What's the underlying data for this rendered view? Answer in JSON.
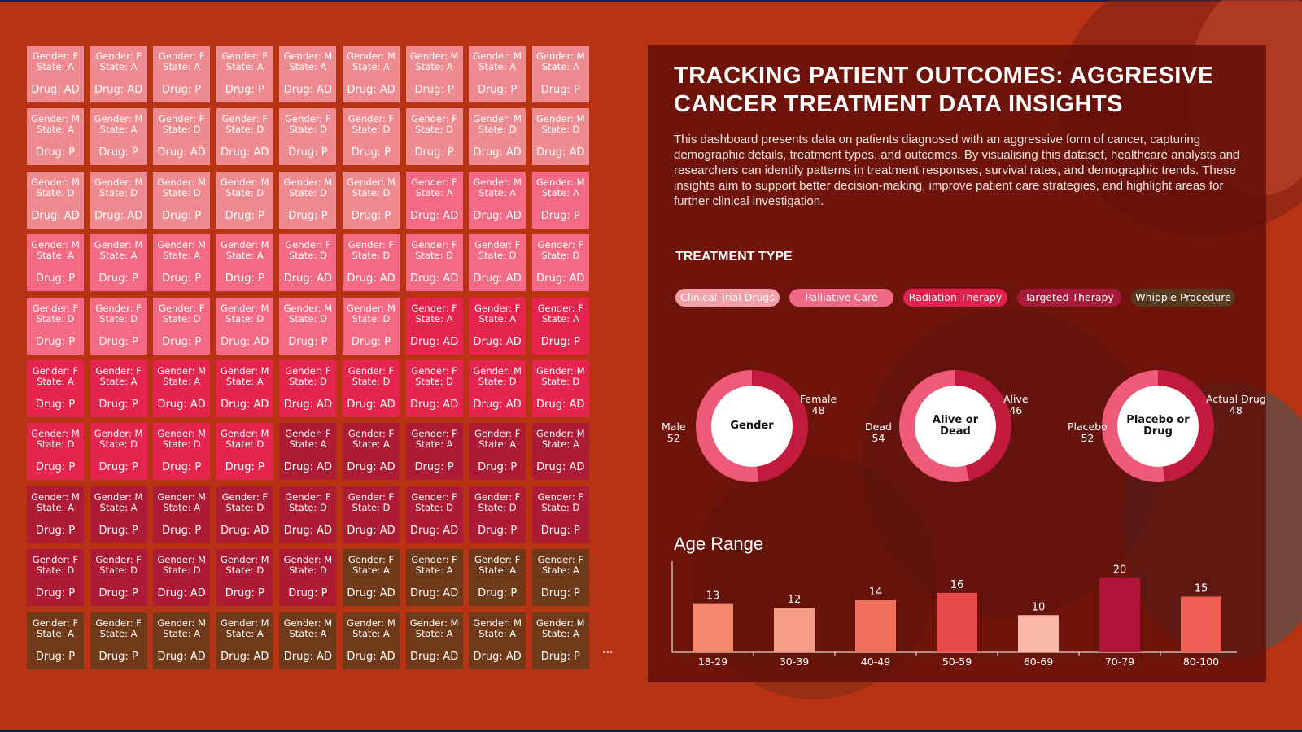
{
  "title": "TRACKING PATIENT OUTCOMES: AGGRESIVE CANCER TREATMENT DATA INSIGHTS",
  "description": "This dashboard presents data on patients diagnosed with an aggressive form of cancer, capturing demographic details, treatment types, and outcomes. By visualising this dataset, healthcare analysts and researchers can identify patterns in treatment responses, survival rates, and demographic trends. These insights aim to support better decision-making, improve patient care strategies, and highlight areas for further clinical investigation.",
  "treatment_type": {
    "heading": "TREATMENT TYPE",
    "items": [
      {
        "label": "Clinical Trial Drugs",
        "color": "#f0a1a8",
        "text_color": "#ffffff"
      },
      {
        "label": "Palliative Care",
        "color": "#ee6a86",
        "text_color": "#ffffff"
      },
      {
        "label": "Radiation Therapy",
        "color": "#e2214f",
        "text_color": "#ffffff"
      },
      {
        "label": "Targeted Therapy",
        "color": "#a81a3a",
        "text_color": "#ffffff"
      },
      {
        "label": "Whipple Procedure",
        "color": "#5a3a1e",
        "text_color": "#ffffff"
      }
    ]
  },
  "donuts": [
    {
      "center": "Gender",
      "left_label": "Male",
      "left_value": "52",
      "right_label": "Female",
      "right_value": "48",
      "fraction_right": 0.48,
      "color_right": "#c21a3d",
      "color_left": "#ee5a78"
    },
    {
      "center": "Alive or Dead",
      "left_label": "Dead",
      "left_value": "54",
      "right_label": "Alive",
      "right_value": "46",
      "fraction_right": 0.46,
      "color_right": "#c21a3d",
      "color_left": "#ee5a78"
    },
    {
      "center": "Placebo or Drug",
      "left_label": "Placebo",
      "left_value": "52",
      "right_label": "Actual Drug",
      "right_value": "48",
      "fraction_right": 0.48,
      "color_right": "#c21a3d",
      "color_left": "#ee5a78"
    }
  ],
  "age_range": {
    "heading": "Age Range"
  },
  "chart_data": {
    "type": "bar",
    "title": "Age Range",
    "categories": [
      "18-29",
      "30-39",
      "40-49",
      "50-59",
      "60-69",
      "70-79",
      "80-100"
    ],
    "values": [
      13,
      12,
      14,
      16,
      10,
      20,
      15
    ],
    "colors": [
      "#f5876e",
      "#f59c87",
      "#f0705c",
      "#e84a4a",
      "#fbb7a8",
      "#b0143a",
      "#ef5e52"
    ],
    "ylim": [
      0,
      21
    ]
  },
  "tiles_colors": {
    "pink_light": "#ee8b91",
    "pink": "#f36a84",
    "red": "#e5254e",
    "crimson": "#ad1b34",
    "brown": "#6e3a19"
  },
  "tiles": [
    [
      {
        "g": "F",
        "s": "A",
        "d": "AD",
        "c": "pink_light"
      },
      {
        "g": "F",
        "s": "A",
        "d": "AD",
        "c": "pink_light"
      },
      {
        "g": "F",
        "s": "A",
        "d": "P",
        "c": "pink_light"
      },
      {
        "g": "F",
        "s": "A",
        "d": "P",
        "c": "pink_light"
      },
      {
        "g": "M",
        "s": "A",
        "d": "AD",
        "c": "pink_light"
      },
      {
        "g": "M",
        "s": "A",
        "d": "AD",
        "c": "pink_light"
      },
      {
        "g": "M",
        "s": "A",
        "d": "P",
        "c": "pink_light"
      },
      {
        "g": "M",
        "s": "A",
        "d": "P",
        "c": "pink_light"
      },
      {
        "g": "M",
        "s": "A",
        "d": "P",
        "c": "pink_light"
      }
    ],
    [
      {
        "g": "M",
        "s": "A",
        "d": "P",
        "c": "pink_light"
      },
      {
        "g": "M",
        "s": "A",
        "d": "P",
        "c": "pink_light"
      },
      {
        "g": "F",
        "s": "D",
        "d": "AD",
        "c": "pink_light"
      },
      {
        "g": "F",
        "s": "D",
        "d": "AD",
        "c": "pink_light"
      },
      {
        "g": "F",
        "s": "D",
        "d": "P",
        "c": "pink_light"
      },
      {
        "g": "F",
        "s": "D",
        "d": "P",
        "c": "pink_light"
      },
      {
        "g": "F",
        "s": "D",
        "d": "P",
        "c": "pink_light"
      },
      {
        "g": "M",
        "s": "D",
        "d": "AD",
        "c": "pink_light"
      },
      {
        "g": "M",
        "s": "D",
        "d": "AD",
        "c": "pink_light"
      }
    ],
    [
      {
        "g": "M",
        "s": "D",
        "d": "AD",
        "c": "pink_light"
      },
      {
        "g": "M",
        "s": "D",
        "d": "AD",
        "c": "pink_light"
      },
      {
        "g": "M",
        "s": "D",
        "d": "P",
        "c": "pink_light"
      },
      {
        "g": "M",
        "s": "D",
        "d": "P",
        "c": "pink_light"
      },
      {
        "g": "M",
        "s": "D",
        "d": "P",
        "c": "pink_light"
      },
      {
        "g": "M",
        "s": "D",
        "d": "P",
        "c": "pink_light"
      },
      {
        "g": "F",
        "s": "A",
        "d": "AD",
        "c": "pink"
      },
      {
        "g": "M",
        "s": "A",
        "d": "AD",
        "c": "pink"
      },
      {
        "g": "M",
        "s": "A",
        "d": "P",
        "c": "pink"
      }
    ],
    [
      {
        "g": "M",
        "s": "A",
        "d": "P",
        "c": "pink"
      },
      {
        "g": "M",
        "s": "A",
        "d": "P",
        "c": "pink"
      },
      {
        "g": "M",
        "s": "A",
        "d": "P",
        "c": "pink"
      },
      {
        "g": "M",
        "s": "A",
        "d": "P",
        "c": "pink"
      },
      {
        "g": "F",
        "s": "D",
        "d": "AD",
        "c": "pink"
      },
      {
        "g": "F",
        "s": "D",
        "d": "AD",
        "c": "pink"
      },
      {
        "g": "F",
        "s": "D",
        "d": "AD",
        "c": "pink"
      },
      {
        "g": "F",
        "s": "D",
        "d": "AD",
        "c": "pink"
      },
      {
        "g": "F",
        "s": "D",
        "d": "AD",
        "c": "pink"
      }
    ],
    [
      {
        "g": "F",
        "s": "D",
        "d": "P",
        "c": "pink"
      },
      {
        "g": "F",
        "s": "D",
        "d": "P",
        "c": "pink"
      },
      {
        "g": "F",
        "s": "D",
        "d": "P",
        "c": "pink"
      },
      {
        "g": "M",
        "s": "D",
        "d": "AD",
        "c": "pink"
      },
      {
        "g": "M",
        "s": "D",
        "d": "P",
        "c": "pink"
      },
      {
        "g": "M",
        "s": "D",
        "d": "P",
        "c": "pink"
      },
      {
        "g": "F",
        "s": "A",
        "d": "AD",
        "c": "red"
      },
      {
        "g": "F",
        "s": "A",
        "d": "AD",
        "c": "red"
      },
      {
        "g": "F",
        "s": "A",
        "d": "P",
        "c": "red"
      }
    ],
    [
      {
        "g": "F",
        "s": "A",
        "d": "P",
        "c": "red"
      },
      {
        "g": "F",
        "s": "A",
        "d": "P",
        "c": "red"
      },
      {
        "g": "M",
        "s": "A",
        "d": "AD",
        "c": "red"
      },
      {
        "g": "M",
        "s": "A",
        "d": "AD",
        "c": "red"
      },
      {
        "g": "F",
        "s": "D",
        "d": "AD",
        "c": "red"
      },
      {
        "g": "F",
        "s": "D",
        "d": "AD",
        "c": "red"
      },
      {
        "g": "F",
        "s": "D",
        "d": "AD",
        "c": "red"
      },
      {
        "g": "M",
        "s": "D",
        "d": "AD",
        "c": "red"
      },
      {
        "g": "M",
        "s": "D",
        "d": "AD",
        "c": "red"
      }
    ],
    [
      {
        "g": "M",
        "s": "D",
        "d": "P",
        "c": "red"
      },
      {
        "g": "M",
        "s": "D",
        "d": "P",
        "c": "red"
      },
      {
        "g": "M",
        "s": "D",
        "d": "P",
        "c": "red"
      },
      {
        "g": "M",
        "s": "D",
        "d": "P",
        "c": "red"
      },
      {
        "g": "F",
        "s": "A",
        "d": "AD",
        "c": "crimson"
      },
      {
        "g": "F",
        "s": "A",
        "d": "AD",
        "c": "crimson"
      },
      {
        "g": "F",
        "s": "A",
        "d": "P",
        "c": "crimson"
      },
      {
        "g": "F",
        "s": "A",
        "d": "P",
        "c": "crimson"
      },
      {
        "g": "M",
        "s": "A",
        "d": "AD",
        "c": "crimson"
      }
    ],
    [
      {
        "g": "M",
        "s": "A",
        "d": "P",
        "c": "crimson"
      },
      {
        "g": "M",
        "s": "A",
        "d": "P",
        "c": "crimson"
      },
      {
        "g": "M",
        "s": "A",
        "d": "P",
        "c": "crimson"
      },
      {
        "g": "F",
        "s": "D",
        "d": "AD",
        "c": "crimson"
      },
      {
        "g": "F",
        "s": "D",
        "d": "AD",
        "c": "crimson"
      },
      {
        "g": "F",
        "s": "D",
        "d": "AD",
        "c": "crimson"
      },
      {
        "g": "F",
        "s": "D",
        "d": "AD",
        "c": "crimson"
      },
      {
        "g": "F",
        "s": "D",
        "d": "P",
        "c": "crimson"
      },
      {
        "g": "F",
        "s": "D",
        "d": "P",
        "c": "crimson"
      }
    ],
    [
      {
        "g": "F",
        "s": "D",
        "d": "P",
        "c": "crimson"
      },
      {
        "g": "F",
        "s": "D",
        "d": "P",
        "c": "crimson"
      },
      {
        "g": "M",
        "s": "D",
        "d": "AD",
        "c": "crimson"
      },
      {
        "g": "M",
        "s": "D",
        "d": "P",
        "c": "crimson"
      },
      {
        "g": "M",
        "s": "D",
        "d": "P",
        "c": "crimson"
      },
      {
        "g": "F",
        "s": "A",
        "d": "AD",
        "c": "brown"
      },
      {
        "g": "F",
        "s": "A",
        "d": "AD",
        "c": "brown"
      },
      {
        "g": "F",
        "s": "A",
        "d": "P",
        "c": "brown"
      },
      {
        "g": "F",
        "s": "A",
        "d": "P",
        "c": "brown"
      }
    ],
    [
      {
        "g": "F",
        "s": "A",
        "d": "P",
        "c": "brown"
      },
      {
        "g": "F",
        "s": "A",
        "d": "P",
        "c": "brown"
      },
      {
        "g": "M",
        "s": "A",
        "d": "AD",
        "c": "brown"
      },
      {
        "g": "M",
        "s": "A",
        "d": "AD",
        "c": "brown"
      },
      {
        "g": "M",
        "s": "A",
        "d": "AD",
        "c": "brown"
      },
      {
        "g": "M",
        "s": "A",
        "d": "AD",
        "c": "brown"
      },
      {
        "g": "M",
        "s": "A",
        "d": "AD",
        "c": "brown"
      },
      {
        "g": "M",
        "s": "A",
        "d": "AD",
        "c": "brown"
      },
      {
        "g": "M",
        "s": "A",
        "d": "P",
        "c": "brown"
      }
    ]
  ],
  "tile_labels": {
    "gender_prefix": "Gender: ",
    "state_prefix": "State: ",
    "drug_prefix": "Drug: "
  },
  "ellipsis": "..."
}
